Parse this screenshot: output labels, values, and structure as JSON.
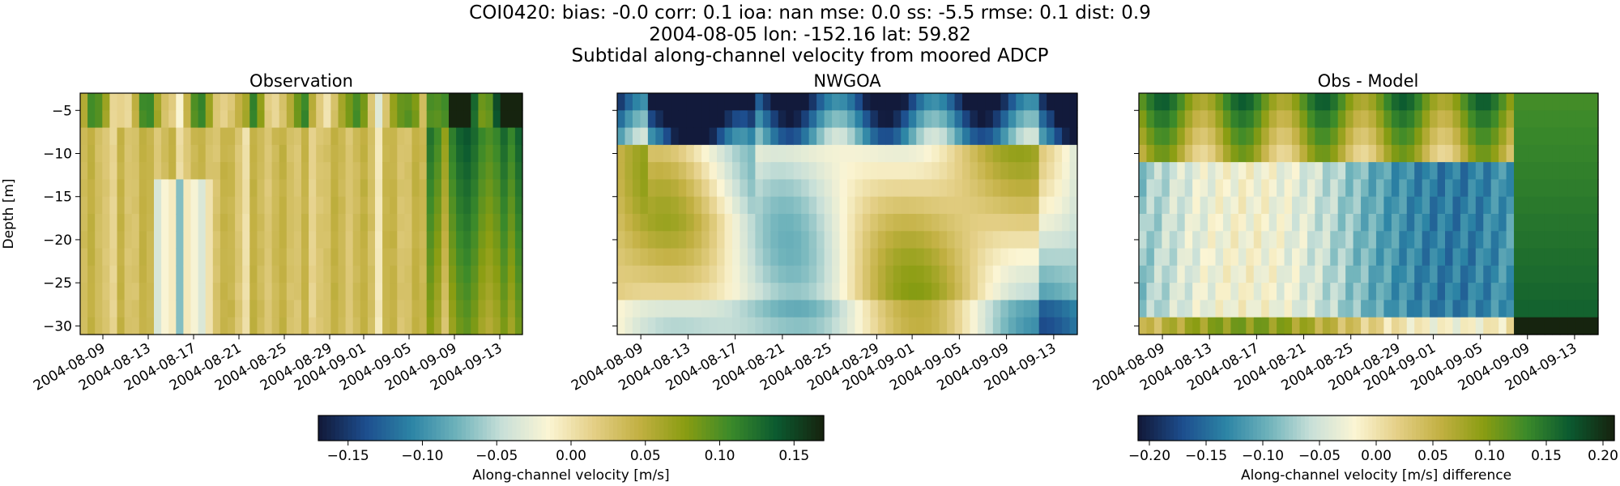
{
  "suptitle": {
    "line1": "COI0420: bias: -0.0  corr: 0.1  ioa: nan  mse: 0.0  ss: -5.5  rmse: 0.1  dist: 0.9",
    "line2": "2004-08-05 lon: -152.16 lat: 59.82",
    "line3": "Subtidal along-channel velocity from moored ADCP"
  },
  "chart_data": [
    {
      "type": "heatmap",
      "title": "Observation",
      "xlabel": "",
      "ylabel": "Depth [m]",
      "x_range": [
        "2004-08-07",
        "2004-09-15"
      ],
      "ylim": [
        -31,
        -3
      ],
      "x_tick_labels": [
        "2004-08-09",
        "2004-08-13",
        "2004-08-17",
        "2004-08-21",
        "2004-08-25",
        "2004-08-29",
        "2004-09-01",
        "2004-09-05",
        "2004-09-09",
        "2004-09-13"
      ],
      "y_ticks": [
        -5,
        -10,
        -15,
        -20,
        -25,
        -30
      ],
      "colorbar": "Along-channel velocity [m/s]",
      "description": "Near-uniform small positive velocities with a near-surface band; strong positive flow in early September"
    },
    {
      "type": "heatmap",
      "title": "NWGOA",
      "xlabel": "",
      "ylabel": "",
      "x_range": [
        "2004-08-07",
        "2004-09-15"
      ],
      "ylim": [
        -31,
        -3
      ],
      "x_tick_labels": [
        "2004-08-09",
        "2004-08-13",
        "2004-08-17",
        "2004-08-21",
        "2004-08-25",
        "2004-08-29",
        "2004-09-01",
        "2004-09-05",
        "2004-09-09",
        "2004-09-13"
      ],
      "y_ticks": [
        -5,
        -10,
        -15,
        -20,
        -25,
        -30
      ],
      "colorbar": "Along-channel velocity [m/s]"
    },
    {
      "type": "heatmap",
      "title": "Obs - Model",
      "xlabel": "",
      "ylabel": "",
      "x_range": [
        "2004-08-07",
        "2004-09-15"
      ],
      "ylim": [
        -31,
        -3
      ],
      "x_tick_labels": [
        "2004-08-09",
        "2004-08-13",
        "2004-08-17",
        "2004-08-21",
        "2004-08-25",
        "2004-08-29",
        "2004-09-01",
        "2004-09-05",
        "2004-09-09",
        "2004-09-13"
      ],
      "y_ticks": [
        -5,
        -10,
        -15,
        -20,
        -25,
        -30
      ],
      "colorbar": "Along-channel velocity [m/s] difference"
    }
  ],
  "colorbars": [
    {
      "label": "Along-channel velocity [m/s]",
      "range": [
        -0.17,
        0.17
      ],
      "ticks": [
        "−0.15",
        "−0.10",
        "−0.05",
        "0.00",
        "0.05",
        "0.10",
        "0.15"
      ],
      "tick_values": [
        -0.15,
        -0.1,
        -0.05,
        0.0,
        0.05,
        0.1,
        0.15
      ]
    },
    {
      "label": "Along-channel velocity [m/s] difference",
      "range": [
        -0.21,
        0.21
      ],
      "ticks": [
        "−0.20",
        "−0.15",
        "−0.10",
        "−0.05",
        "0.00",
        "0.05",
        "0.10",
        "0.15",
        "0.20"
      ],
      "tick_values": [
        -0.2,
        -0.15,
        -0.1,
        -0.05,
        0.0,
        0.05,
        0.1,
        0.15,
        0.2
      ]
    }
  ],
  "y_tick_labels": [
    "−5",
    "−10",
    "−15",
    "−20",
    "−25",
    "−30"
  ],
  "colormap": [
    "#121a3b",
    "#1d4e8e",
    "#2c84a5",
    "#6fb3bb",
    "#c9e0d8",
    "#fbf5d4",
    "#e4cf86",
    "#c2b042",
    "#8a9d12",
    "#3b8a2a",
    "#0b5a30",
    "#16240f"
  ]
}
